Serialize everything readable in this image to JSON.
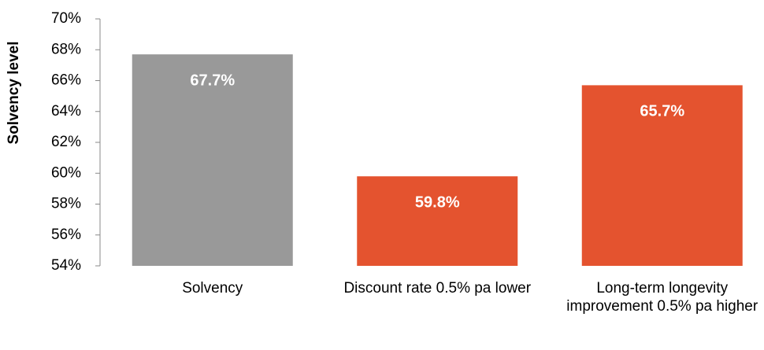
{
  "chart_data": {
    "type": "bar",
    "y_label": "Solvency level",
    "categories": [
      "Solvency",
      "Discount rate 0.5% pa lower",
      "Long-term longevity improvement 0.5% pa higher"
    ],
    "values": [
      67.7,
      59.8,
      65.7
    ],
    "value_labels": [
      "67.7%",
      "59.8%",
      "65.7%"
    ],
    "colors": [
      "#999999",
      "#e4532f",
      "#e4532f"
    ],
    "ylim": [
      54,
      70
    ],
    "yticks": [
      {
        "value": 54,
        "label": "54%"
      },
      {
        "value": 56,
        "label": "56%"
      },
      {
        "value": 58,
        "label": "58%"
      },
      {
        "value": 60,
        "label": "60%"
      },
      {
        "value": 62,
        "label": "62%"
      },
      {
        "value": 64,
        "label": "64%"
      },
      {
        "value": 66,
        "label": "66%"
      },
      {
        "value": 68,
        "label": "68%"
      },
      {
        "value": 70,
        "label": "70%"
      }
    ],
    "grid": false
  }
}
